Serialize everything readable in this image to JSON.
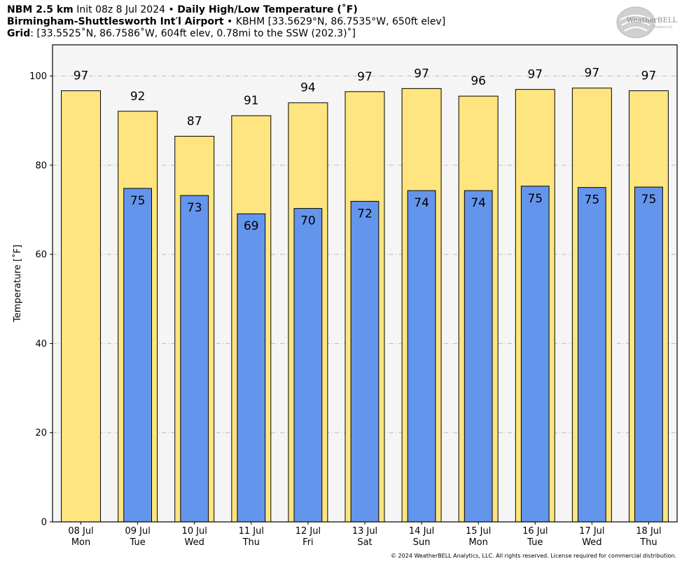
{
  "header": {
    "model": "NBM 2.5 km",
    "init": "Init 08z 8 Jul 2024",
    "bullet": "•",
    "product": "Daily High/Low Temperature (˚F)",
    "station_name": "Birmingham-Shuttlesworth Int′l Airport",
    "station_info": "KBHM [33.5629°N, 86.7535°W, 650ft elev]",
    "grid_label": "Grid",
    "grid_info": ": [33.5525˚N, 86.7586˚W, 604ft elev, 0.78mi to the SSW (202.3)˚]"
  },
  "logo": {
    "text": "WeatherBELL",
    "sub": "Analytics LLC"
  },
  "footer": "© 2024 WeatherBELL Analytics, LLC. All rights reserved. License required for commercial distribution.",
  "colors": {
    "high": "#FFE57F",
    "low": "#6495ED",
    "plot_bg": "#F5F5F5",
    "grid": "#BBBBBB"
  },
  "chart_data": {
    "type": "bar",
    "ylabel": "Temperature [˚F]",
    "ylim": [
      0,
      107
    ],
    "yticks": [
      0,
      20,
      40,
      60,
      80,
      100
    ],
    "grid": true,
    "categories": [
      [
        "08 Jul",
        "Mon"
      ],
      [
        "09 Jul",
        "Tue"
      ],
      [
        "10 Jul",
        "Wed"
      ],
      [
        "11 Jul",
        "Thu"
      ],
      [
        "12 Jul",
        "Fri"
      ],
      [
        "13 Jul",
        "Sat"
      ],
      [
        "14 Jul",
        "Sun"
      ],
      [
        "15 Jul",
        "Mon"
      ],
      [
        "16 Jul",
        "Tue"
      ],
      [
        "17 Jul",
        "Wed"
      ],
      [
        "18 Jul",
        "Thu"
      ]
    ],
    "series": [
      {
        "values": [
          96.7,
          92.1,
          86.5,
          91.1,
          94.0,
          96.5,
          97.2,
          95.5,
          97.0,
          97.3,
          96.7
        ],
        "labels": [
          "97",
          "92",
          "87",
          "91",
          "94",
          "97",
          "97",
          "96",
          "97",
          "97",
          "97"
        ]
      },
      {
        "values": [
          null,
          74.8,
          73.2,
          69.1,
          70.3,
          71.9,
          74.3,
          74.3,
          75.3,
          75.0,
          75.1
        ],
        "labels": [
          "",
          "75",
          "73",
          "69",
          "70",
          "72",
          "74",
          "74",
          "75",
          "75",
          "75"
        ]
      }
    ]
  }
}
